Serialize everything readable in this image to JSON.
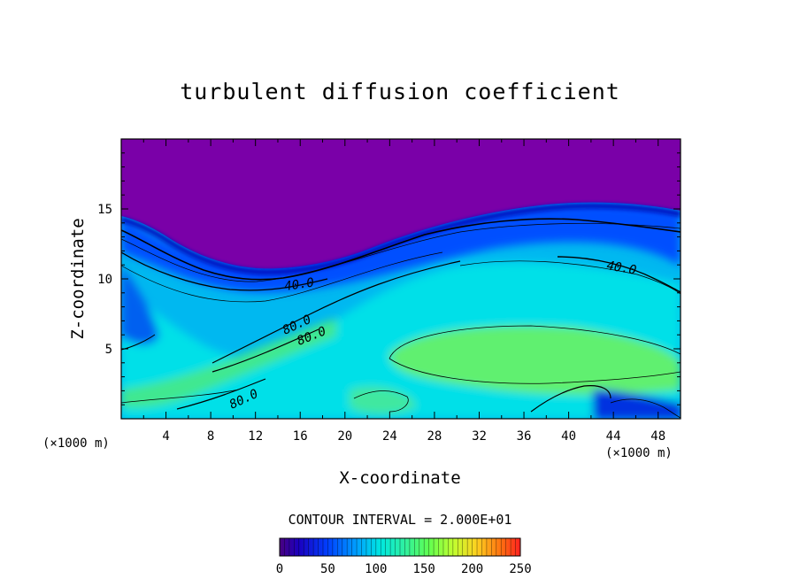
{
  "chart_data": {
    "type": "heatmap",
    "title": "turbulent diffusion coefficient",
    "xlabel": "X-coordinate",
    "ylabel": "Z-coordinate",
    "x_unit": "(×1000 m)",
    "y_unit": "(×1000 m)",
    "xlim": [
      0,
      50
    ],
    "ylim": [
      0,
      20
    ],
    "x_ticks": [
      "4",
      "8",
      "12",
      "16",
      "20",
      "24",
      "28",
      "32",
      "36",
      "40",
      "44",
      "48"
    ],
    "y_ticks": [
      "5",
      "10",
      "15"
    ],
    "contour_interval_text": "CONTOUR INTERVAL = 2.000E+01",
    "contour_levels": [
      40,
      80
    ],
    "contour_labels": [
      {
        "text": "40.0",
        "x": 16.5,
        "z": 9.5
      },
      {
        "text": "80.0",
        "x": 16.0,
        "z": 6.4
      },
      {
        "text": "80.0",
        "x": 17.5,
        "z": 5.6
      },
      {
        "text": "80.0",
        "x": 11.0,
        "z": 1.8
      },
      {
        "text": "40.0",
        "x": 45.0,
        "z": 10.8
      }
    ],
    "colorbar": {
      "min": 0,
      "max": 250,
      "tick_labels": [
        "0",
        "50",
        "100",
        "150",
        "200",
        "250"
      ]
    },
    "upper_boundary_z": [
      [
        0,
        14.5
      ],
      [
        8,
        12.5
      ],
      [
        13,
        11.0
      ],
      [
        20,
        11.4
      ],
      [
        28,
        13.0
      ],
      [
        36,
        14.5
      ],
      [
        42,
        15.0
      ],
      [
        50,
        14.5
      ]
    ],
    "field_regions": [
      {
        "description": "upper layer above boundary",
        "value": 0
      },
      {
        "description": "core mid-domain",
        "value": 120
      }
    ]
  },
  "colors": {
    "top_layer": "#7a00a8",
    "background": "#ffffff",
    "contour": "#000000"
  }
}
